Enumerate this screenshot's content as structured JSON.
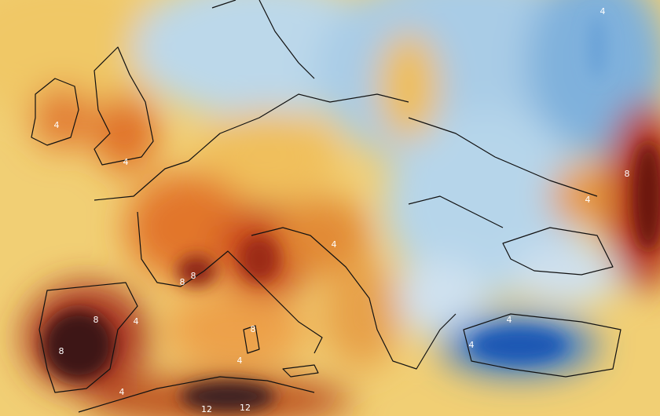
{
  "map": {
    "contour_labels": [
      4,
      4,
      4,
      8,
      4,
      4,
      8,
      8,
      8,
      4,
      8,
      8,
      4,
      12,
      12,
      4,
      4,
      4
    ]
  }
}
